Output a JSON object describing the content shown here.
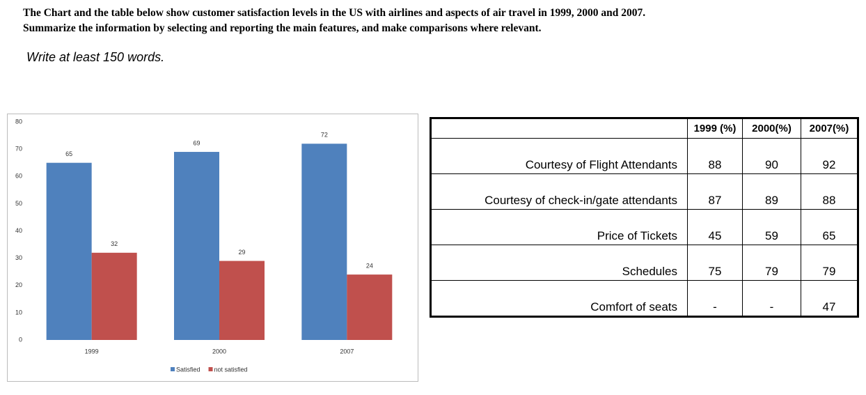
{
  "header": {
    "lines": [
      "The Chart and the table below show customer satisfaction levels in the US with airlines and aspects of air travel in 1999, 2000 and 2007.",
      "Summarize the information by selecting and reporting the main features, and make comparisons where relevant."
    ],
    "instruction": "Write at least 150 words."
  },
  "chart_data": {
    "type": "bar",
    "categories": [
      "1999",
      "2000",
      "2007"
    ],
    "series": [
      {
        "name": "Satisfied",
        "color": "#4f81bd",
        "values": [
          65,
          69,
          72
        ]
      },
      {
        "name": "not satisfied",
        "color": "#c0504d",
        "values": [
          32,
          29,
          24
        ]
      }
    ],
    "ylim": [
      0,
      80
    ],
    "yticks": [
      0,
      10,
      20,
      30,
      40,
      50,
      60,
      70,
      80
    ],
    "grid": false,
    "legend": "bottom"
  },
  "table": {
    "header": [
      "1999 (%)",
      "2000(%)",
      "2007(%)"
    ],
    "rows": [
      [
        "Courtesy of Flight Attendants",
        88,
        90,
        92
      ],
      [
        "Courtesy of check-in/gate attendants",
        87,
        89,
        88
      ],
      [
        "Price of Tickets",
        45,
        59,
        65
      ],
      [
        "Schedules",
        75,
        79,
        79
      ],
      [
        "Comfort of seats",
        "-",
        "-",
        47
      ]
    ]
  }
}
